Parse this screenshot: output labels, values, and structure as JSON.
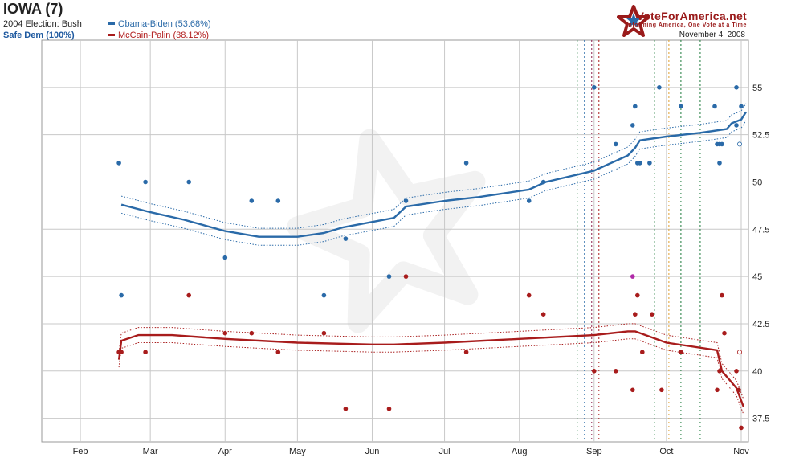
{
  "header": {
    "title": "IOWA (7)",
    "prev_election": "2004 Election: Bush",
    "rating": "Safe Dem (100%)",
    "brand": "VoteForAmerica.net",
    "tagline": "Informing America, One Vote at a Time",
    "date": "November 4, 2008"
  },
  "colors": {
    "dem": "#2a6aa8",
    "gop": "#a81c1c",
    "grid": "#c8c8c8",
    "watermark": "#f2f2f2"
  },
  "chart_data": {
    "type": "line",
    "xlabel": "",
    "ylabel": "",
    "x_ticks": [
      "Feb",
      "Mar",
      "Apr",
      "May",
      "Jun",
      "Jul",
      "Aug",
      "Sep",
      "Oct",
      "Nov"
    ],
    "x_tick_dates": [
      "2008-02-01",
      "2008-03-01",
      "2008-04-01",
      "2008-05-01",
      "2008-06-01",
      "2008-07-01",
      "2008-08-01",
      "2008-09-01",
      "2008-10-01",
      "2008-11-01"
    ],
    "xlim": [
      "2008-01-16",
      "2008-11-04"
    ],
    "y_ticks": [
      37.5,
      40,
      42.5,
      45,
      47.5,
      50,
      52.5,
      55
    ],
    "ylim": [
      36.25,
      57.5
    ],
    "grid": true,
    "legend": "top-left",
    "series": [
      {
        "name": "Obama-Biden (53.68%)",
        "color": "#2a6aa8",
        "trend": [
          [
            "2008-02-18",
            48.8
          ],
          [
            "2008-03-01",
            48.4
          ],
          [
            "2008-03-15",
            48.0
          ],
          [
            "2008-04-01",
            47.4
          ],
          [
            "2008-04-15",
            47.1
          ],
          [
            "2008-05-01",
            47.1
          ],
          [
            "2008-05-12",
            47.3
          ],
          [
            "2008-05-20",
            47.6
          ],
          [
            "2008-06-10",
            48.1
          ],
          [
            "2008-06-15",
            48.7
          ],
          [
            "2008-07-01",
            49.0
          ],
          [
            "2008-07-15",
            49.2
          ],
          [
            "2008-08-05",
            49.6
          ],
          [
            "2008-08-12",
            50.0
          ],
          [
            "2008-09-01",
            50.6
          ],
          [
            "2008-09-15",
            51.4
          ],
          [
            "2008-09-18",
            51.8
          ],
          [
            "2008-09-20",
            52.2
          ],
          [
            "2008-10-01",
            52.4
          ],
          [
            "2008-10-15",
            52.6
          ],
          [
            "2008-10-26",
            52.8
          ],
          [
            "2008-10-28",
            53.1
          ],
          [
            "2008-11-01",
            53.3
          ],
          [
            "2008-11-03",
            53.7
          ]
        ],
        "band": 0.45,
        "polls": [
          [
            "2008-02-17",
            51
          ],
          [
            "2008-02-18",
            44
          ],
          [
            "2008-02-28",
            50
          ],
          [
            "2008-03-17",
            50
          ],
          [
            "2008-04-01",
            46
          ],
          [
            "2008-04-12",
            49
          ],
          [
            "2008-04-23",
            49
          ],
          [
            "2008-05-12",
            44
          ],
          [
            "2008-05-21",
            47
          ],
          [
            "2008-06-08",
            45
          ],
          [
            "2008-06-15",
            49
          ],
          [
            "2008-07-10",
            51
          ],
          [
            "2008-08-05",
            49
          ],
          [
            "2008-08-11",
            50
          ],
          [
            "2008-09-01",
            55
          ],
          [
            "2008-09-10",
            52
          ],
          [
            "2008-09-17",
            53
          ],
          [
            "2008-09-18",
            54
          ],
          [
            "2008-09-19",
            51
          ],
          [
            "2008-09-20",
            51
          ],
          [
            "2008-09-24",
            51
          ],
          [
            "2008-09-28",
            55
          ],
          [
            "2008-10-07",
            54
          ],
          [
            "2008-10-21",
            54
          ],
          [
            "2008-10-22",
            52
          ],
          [
            "2008-10-23",
            52
          ],
          [
            "2008-10-24",
            52
          ],
          [
            "2008-10-23",
            51
          ],
          [
            "2008-10-30",
            55
          ],
          [
            "2008-11-01",
            54
          ],
          [
            "2008-10-30",
            53
          ]
        ],
        "final_estimate": 52
      },
      {
        "name": "McCain-Palin (38.12%)",
        "color": "#a81c1c",
        "trend": [
          [
            "2008-02-17",
            40.6
          ],
          [
            "2008-02-18",
            41.6
          ],
          [
            "2008-02-25",
            41.9
          ],
          [
            "2008-03-10",
            41.9
          ],
          [
            "2008-04-01",
            41.7
          ],
          [
            "2008-05-01",
            41.5
          ],
          [
            "2008-06-01",
            41.4
          ],
          [
            "2008-06-10",
            41.4
          ],
          [
            "2008-07-01",
            41.5
          ],
          [
            "2008-08-01",
            41.7
          ],
          [
            "2008-09-01",
            41.9
          ],
          [
            "2008-09-15",
            42.1
          ],
          [
            "2008-09-18",
            42.1
          ],
          [
            "2008-10-01",
            41.5
          ],
          [
            "2008-10-22",
            41.1
          ],
          [
            "2008-10-24",
            40.0
          ],
          [
            "2008-10-30",
            39.1
          ],
          [
            "2008-11-02",
            38.1
          ]
        ],
        "band": 0.4,
        "polls": [
          [
            "2008-02-17",
            41
          ],
          [
            "2008-02-18",
            41
          ],
          [
            "2008-02-28",
            41
          ],
          [
            "2008-03-17",
            44
          ],
          [
            "2008-04-01",
            42
          ],
          [
            "2008-04-12",
            42
          ],
          [
            "2008-04-23",
            41
          ],
          [
            "2008-05-12",
            42
          ],
          [
            "2008-05-21",
            38
          ],
          [
            "2008-06-08",
            38
          ],
          [
            "2008-06-15",
            45
          ],
          [
            "2008-07-10",
            41
          ],
          [
            "2008-08-05",
            44
          ],
          [
            "2008-08-11",
            43
          ],
          [
            "2008-09-01",
            40
          ],
          [
            "2008-09-10",
            40
          ],
          [
            "2008-09-17",
            39
          ],
          [
            "2008-09-18",
            43
          ],
          [
            "2008-09-19",
            44
          ],
          [
            "2008-09-21",
            41
          ],
          [
            "2008-09-25",
            43
          ],
          [
            "2008-09-29",
            39
          ],
          [
            "2008-10-07",
            41
          ],
          [
            "2008-10-22",
            39
          ],
          [
            "2008-10-23",
            40
          ],
          [
            "2008-10-24",
            44
          ],
          [
            "2008-10-25",
            42
          ],
          [
            "2008-10-30",
            40
          ],
          [
            "2008-10-31",
            39
          ],
          [
            "2008-11-01",
            37
          ]
        ],
        "final_estimate": 41
      }
    ],
    "tied_polls": [
      [
        "2008-09-17",
        45
      ]
    ],
    "event_lines": [
      {
        "date": "2008-08-25",
        "color": "#1c7a3a"
      },
      {
        "date": "2008-08-28",
        "color": "#2a6aa8"
      },
      {
        "date": "2008-08-31",
        "color": "#8a1c4a"
      },
      {
        "date": "2008-09-03",
        "color": "#a81c1c"
      },
      {
        "date": "2008-09-26",
        "color": "#1c7a3a"
      },
      {
        "date": "2008-10-02",
        "color": "#e0a030"
      },
      {
        "date": "2008-10-07",
        "color": "#1c7a3a"
      },
      {
        "date": "2008-10-15",
        "color": "#1c7a3a"
      }
    ]
  }
}
